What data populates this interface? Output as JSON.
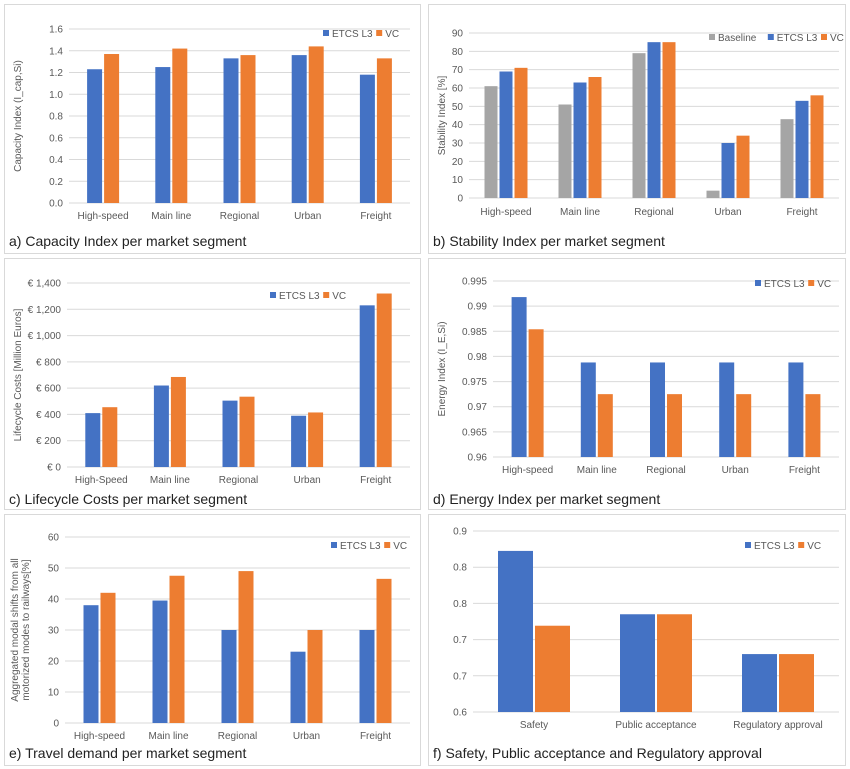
{
  "colors": {
    "etcs": "#4472C4",
    "vc": "#ED7D31",
    "baseline": "#A5A5A5",
    "grid": "#d9d9d9",
    "text": "#595959"
  },
  "panels": [
    {
      "id": "a",
      "title": "a) Capacity Index per market segment",
      "chart_data": {
        "type": "bar",
        "categories": [
          "High-speed",
          "Main line",
          "Regional",
          "Urban",
          "Freight"
        ],
        "series": [
          {
            "name": "ETCS L3",
            "color": "#4472C4",
            "values": [
              1.23,
              1.25,
              1.33,
              1.36,
              1.18
            ]
          },
          {
            "name": "VC",
            "color": "#ED7D31",
            "values": [
              1.37,
              1.42,
              1.36,
              1.44,
              1.33
            ]
          }
        ],
        "ylabel": "Capacity Index (I_cap,Si)",
        "ylim": [
          0,
          1.6
        ],
        "yticks": [
          "0.0",
          "0.2",
          "0.4",
          "0.6",
          "0.8",
          "1.0",
          "1.2",
          "1.4",
          "1.6"
        ],
        "grid": true,
        "legend": "top-right"
      }
    },
    {
      "id": "b",
      "title": "b) Stability Index per market segment",
      "chart_data": {
        "type": "bar",
        "categories": [
          "High-speed",
          "Main line",
          "Regional",
          "Urban",
          "Freight"
        ],
        "series": [
          {
            "name": "Baseline",
            "color": "#A5A5A5",
            "values": [
              61,
              51,
              79,
              4,
              43
            ]
          },
          {
            "name": "ETCS L3",
            "color": "#4472C4",
            "values": [
              69,
              63,
              85,
              30,
              53
            ]
          },
          {
            "name": "VC",
            "color": "#ED7D31",
            "values": [
              71,
              66,
              85,
              34,
              56
            ]
          }
        ],
        "ylabel": "Stability Index [%]",
        "ylim": [
          0,
          90
        ],
        "yticks": [
          "0",
          "10",
          "20",
          "30",
          "40",
          "50",
          "60",
          "70",
          "80",
          "90"
        ],
        "grid": true,
        "legend": "top-right"
      }
    },
    {
      "id": "c",
      "title": "c) Lifecycle Costs per market segment",
      "chart_data": {
        "type": "bar",
        "categories": [
          "High-Speed",
          "Main line",
          "Regional",
          "Urban",
          "Freight"
        ],
        "series": [
          {
            "name": "ETCS L3",
            "color": "#4472C4",
            "values": [
              410,
              620,
              505,
              390,
              1230
            ]
          },
          {
            "name": "VC",
            "color": "#ED7D31",
            "values": [
              455,
              685,
              535,
              415,
              1320
            ]
          }
        ],
        "ylabel": "Lifecycle Costs [Million Euros]",
        "ylim": [
          0,
          1400
        ],
        "yticks": [
          "€ 0",
          "€ 200",
          "€ 400",
          "€ 600",
          "€ 800",
          "€ 1,000",
          "€ 1,200",
          "€ 1,400"
        ],
        "grid": true,
        "legend": "top-right"
      }
    },
    {
      "id": "d",
      "title": "d) Energy Index per market segment",
      "chart_data": {
        "type": "bar",
        "categories": [
          "High-speed",
          "Main line",
          "Regional",
          "Urban",
          "Freight"
        ],
        "series": [
          {
            "name": "ETCS L3",
            "color": "#4472C4",
            "values": [
              0.9918,
              0.9788,
              0.9788,
              0.9788,
              0.9788
            ]
          },
          {
            "name": "VC",
            "color": "#ED7D31",
            "values": [
              0.9854,
              0.9725,
              0.9725,
              0.9725,
              0.9725
            ]
          }
        ],
        "ylabel": "Energy Index (I_E,Si)",
        "ylim": [
          0.96,
          0.995
        ],
        "yticks": [
          "0.96",
          "0.965",
          "0.97",
          "0.975",
          "0.98",
          "0.985",
          "0.99",
          "0.995"
        ],
        "grid": true,
        "legend": "top-right"
      }
    },
    {
      "id": "e",
      "title": "e) Travel demand per market segment",
      "chart_data": {
        "type": "bar",
        "categories": [
          "High-speed",
          "Main line",
          "Regional",
          "Urban",
          "Freight"
        ],
        "series": [
          {
            "name": "ETCS L3",
            "color": "#4472C4",
            "values": [
              38,
              39.5,
              30,
              23,
              30
            ]
          },
          {
            "name": "VC",
            "color": "#ED7D31",
            "values": [
              42,
              47.5,
              49,
              30,
              46.5
            ]
          }
        ],
        "ylabel": [
          "Aggregated modal shifts from all",
          "motorized modes to railways[%]"
        ],
        "ylim": [
          0,
          60
        ],
        "yticks": [
          "0",
          "10",
          "20",
          "30",
          "40",
          "50",
          "60"
        ],
        "grid": true,
        "legend": "top-right"
      }
    },
    {
      "id": "f",
      "title": "f) Safety, Public acceptance and Regulatory approval",
      "chart_data": {
        "type": "bar",
        "categories": [
          "Safety",
          "Public acceptance",
          "Regulatory approval"
        ],
        "series": [
          {
            "name": "ETCS L3",
            "color": "#4472C4",
            "values": [
              0.867,
              0.762,
              0.696
            ]
          },
          {
            "name": "VC",
            "color": "#ED7D31",
            "values": [
              0.743,
              0.762,
              0.696
            ]
          }
        ],
        "ylabel": "",
        "ylim": [
          0.6,
          0.9
        ],
        "yticks": [
          "0.6",
          "0.7",
          "0.7",
          "0.8",
          "0.8",
          "0.9"
        ],
        "grid": true,
        "legend": "top-right"
      }
    }
  ]
}
